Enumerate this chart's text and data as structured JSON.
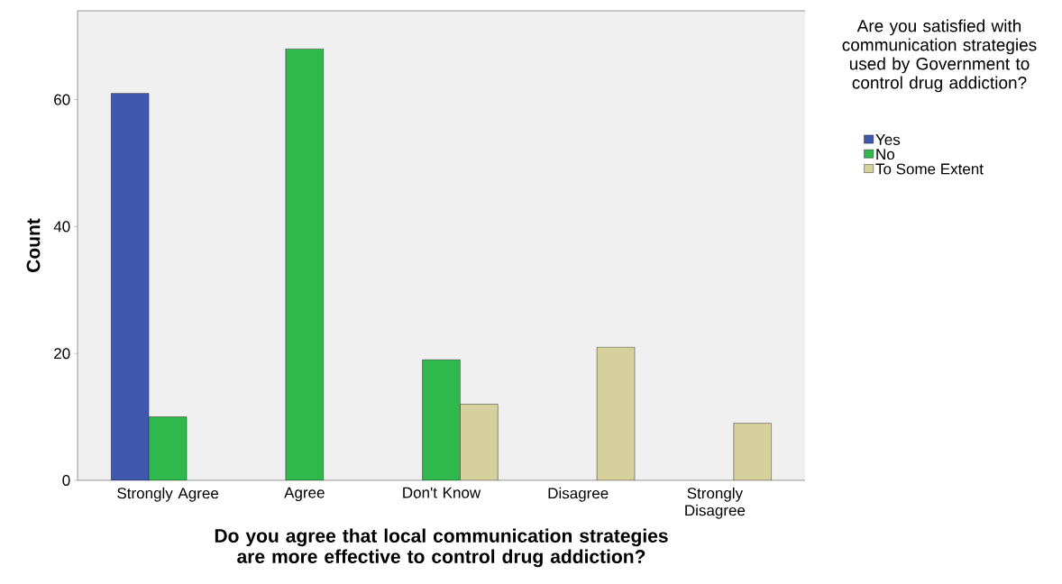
{
  "chart_data": {
    "type": "bar",
    "xlabel": "Do you agree that local communication strategies are more effective to control drug addiction?",
    "ylabel": "Count",
    "legend_title": "Are you satisfied with communication strategies used by Government to control drug addiction?",
    "categories": [
      "Strongly Agree",
      "Agree",
      "Don't Know",
      "Disagree",
      "Strongly Disagree"
    ],
    "series": [
      {
        "name": "Yes",
        "color": "#3f57ad",
        "values": [
          61,
          null,
          null,
          null,
          null
        ]
      },
      {
        "name": "No",
        "color": "#2fb84b",
        "values": [
          10,
          68,
          19,
          null,
          null
        ]
      },
      {
        "name": "To Some Extent",
        "color": "#d6d09d",
        "values": [
          null,
          null,
          12,
          21,
          9
        ]
      }
    ],
    "ylim": [
      0,
      74
    ],
    "yticks": [
      0,
      20,
      40,
      60
    ],
    "legend": "right"
  }
}
